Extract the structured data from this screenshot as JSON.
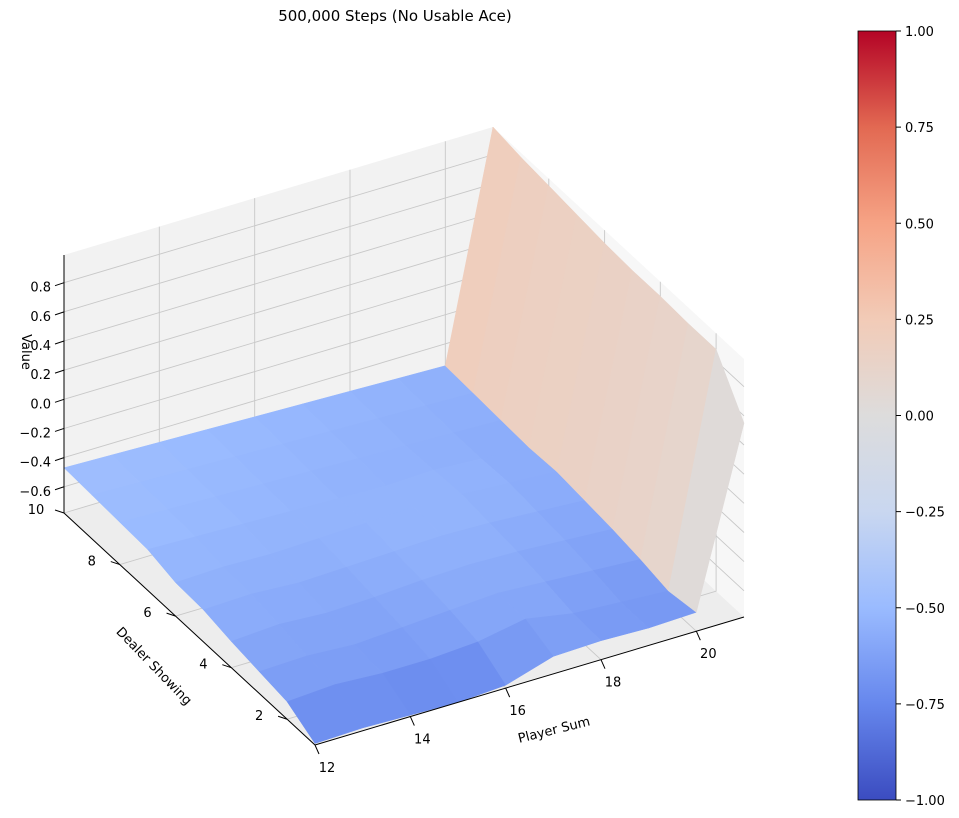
{
  "chart_data": {
    "type": "surface3d",
    "title": "500,000 Steps (No Usable Ace)",
    "xlabel": "Player Sum",
    "ylabel": "Dealer Showing",
    "zlabel": "Value",
    "x": [
      12,
      13,
      14,
      15,
      16,
      17,
      18,
      19,
      20,
      21
    ],
    "y": [
      1,
      2,
      3,
      4,
      5,
      6,
      7,
      8,
      9,
      10
    ],
    "x_ticks": [
      "12",
      "14",
      "16",
      "18",
      "20"
    ],
    "y_ticks": [
      "2",
      "4",
      "6",
      "8",
      "10"
    ],
    "z_ticks": [
      "−0.6",
      "−0.4",
      "−0.2",
      "0.0",
      "0.2",
      "0.4",
      "0.6",
      "0.8"
    ],
    "xlim": [
      12,
      21
    ],
    "ylim": [
      1,
      10
    ],
    "zlim": [
      -0.78,
      0.99
    ],
    "z": [
      [
        -0.77,
        -0.76,
        -0.77,
        -0.78,
        -0.76,
        -0.66,
        -0.65,
        -0.66,
        -0.65,
        -0.63
      ],
      [
        -0.66,
        -0.64,
        -0.66,
        -0.66,
        -0.64,
        -0.58,
        -0.64,
        -0.66,
        -0.68,
        -0.7
      ],
      [
        -0.63,
        -0.62,
        -0.64,
        -0.62,
        -0.6,
        -0.58,
        -0.6,
        -0.62,
        -0.64,
        -0.66
      ],
      [
        -0.6,
        -0.58,
        -0.6,
        -0.59,
        -0.57,
        -0.56,
        -0.57,
        -0.59,
        -0.61,
        -0.63
      ],
      [
        -0.56,
        -0.55,
        -0.57,
        -0.56,
        -0.55,
        -0.54,
        -0.55,
        -0.57,
        -0.59,
        -0.61
      ],
      [
        -0.55,
        -0.54,
        -0.55,
        -0.54,
        -0.53,
        -0.52,
        -0.53,
        -0.55,
        -0.57,
        -0.59
      ],
      [
        -0.5,
        -0.51,
        -0.52,
        -0.53,
        -0.54,
        -0.55,
        -0.54,
        -0.56,
        -0.58,
        -0.6
      ],
      [
        -0.49,
        -0.5,
        -0.51,
        -0.52,
        -0.53,
        -0.54,
        -0.55,
        -0.56,
        -0.57,
        -0.58
      ],
      [
        -0.48,
        -0.49,
        -0.5,
        -0.51,
        -0.52,
        -0.53,
        -0.54,
        -0.55,
        -0.56,
        -0.57
      ],
      [
        -0.47,
        -0.48,
        -0.49,
        -0.5,
        -0.51,
        -0.52,
        -0.53,
        -0.54,
        -0.55,
        -0.56
      ]
    ],
    "z_col21": [
      0.55,
      0.88,
      0.88,
      0.89,
      0.89,
      0.9,
      0.92,
      0.94,
      0.96,
      0.99
    ],
    "colormap": "coolwarm",
    "colorbar": {
      "min": -1.0,
      "max": 1.0,
      "ticks": [
        "1.00",
        "0.75",
        "0.50",
        "0.25",
        "0.00",
        "−0.25",
        "−0.50",
        "−0.75",
        "−1.00"
      ],
      "colors": [
        "#3b4cc0",
        "#6687ed",
        "#9abbff",
        "#c9d7f0",
        "#dddcdc",
        "#f2cbb7",
        "#f6a385",
        "#e26952",
        "#b40426"
      ]
    },
    "grid": true,
    "legend": "none"
  }
}
